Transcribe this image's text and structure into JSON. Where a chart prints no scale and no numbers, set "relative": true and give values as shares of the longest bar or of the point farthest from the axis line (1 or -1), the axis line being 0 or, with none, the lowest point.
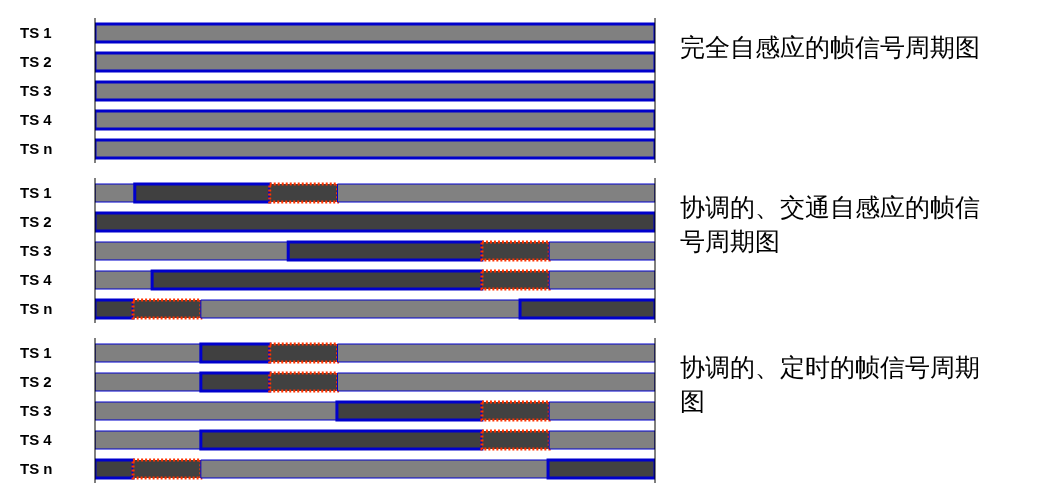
{
  "chart_data": [
    {
      "type": "bar",
      "orientation": "horizontal",
      "relative": true,
      "stacked": true,
      "annotations": [
        "完全自感应的帧信号周期图"
      ],
      "categories": [
        "TS 1",
        "TS 2",
        "TS 3",
        "TS 4",
        "TS n"
      ],
      "series": [
        {
          "color": "#808080",
          "values": [
            1,
            1,
            1,
            1,
            1
          ]
        }
      ]
    },
    {
      "type": "bar",
      "orientation": "horizontal",
      "relative": true,
      "stacked": true,
      "annotations": [
        "协调的、交通自感应的帧信号周期图"
      ],
      "categories": [
        "TS 1",
        "TS 2",
        "TS 3",
        "TS 4",
        "TS n"
      ],
      "series": [
        {
          "color": "#808080",
          "values": [
            0.071,
            null,
            0.345,
            0.102,
            null
          ]
        },
        {
          "color": "#404040",
          "values": [
            0.241,
            1,
            0.346,
            0.589,
            0.068
          ]
        },
        {
          "color": "#414141",
          "line_style": "dotted",
          "values": [
            0.121,
            null,
            0.12,
            0.12,
            0.121
          ]
        },
        {
          "color": "#818181",
          "values": [
            0.567,
            null,
            0.189,
            0.189,
            0.57
          ]
        },
        {
          "color": "#424242",
          "values": [
            null,
            null,
            null,
            null,
            0.241
          ]
        }
      ]
    },
    {
      "type": "bar",
      "orientation": "horizontal",
      "relative": true,
      "stacked": true,
      "annotations": [
        "协调的、定时的帧信号周期图"
      ],
      "categories": [
        "TS 1",
        "TS 2",
        "TS 3",
        "TS 4",
        "TS n"
      ],
      "series": [
        {
          "color": "#808080",
          "values": [
            0.189,
            0.189,
            0.432,
            0.189,
            null
          ]
        },
        {
          "color": "#404040",
          "values": [
            0.123,
            0.123,
            0.259,
            0.502,
            0.068
          ]
        },
        {
          "color": "#414141",
          "line_style": "dotted",
          "values": [
            0.121,
            0.121,
            0.12,
            0.12,
            0.121
          ]
        },
        {
          "color": "#818181",
          "values": [
            0.567,
            0.567,
            0.189,
            0.189,
            0.62
          ]
        },
        {
          "color": "#424242",
          "values": [
            null,
            null,
            null,
            null,
            0.191
          ]
        }
      ]
    }
  ]
}
